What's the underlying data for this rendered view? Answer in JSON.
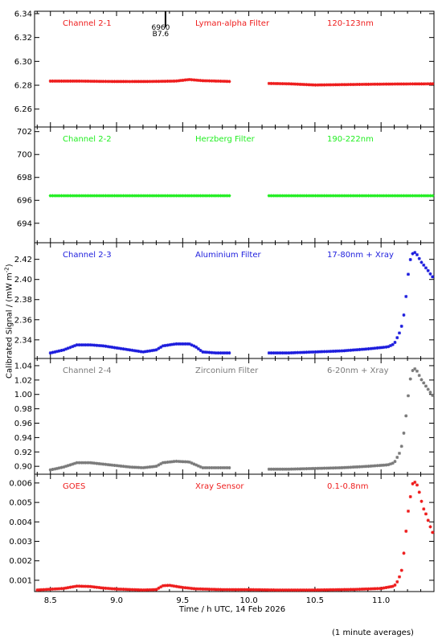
{
  "chart_data": {
    "type": "scatter",
    "xlabel": "Time / h UTC, 14 Feb 2026",
    "ylabel": "Calibrated Signal / (mW m",
    "ylabel_sup": "-2",
    "ylabel_end": ")",
    "note": "(1 minute averages)",
    "xlim": [
      8.38,
      11.4
    ],
    "x_ticks": [
      "8.5",
      "9.0",
      "9.5",
      "10.0",
      "10.5",
      "11.0"
    ],
    "x_tick_values": [
      8.5,
      9.0,
      9.5,
      10.0,
      10.5,
      11.0
    ],
    "event_marker": {
      "x": 9.37,
      "labels": [
        "6960",
        "B7.6"
      ]
    },
    "panels": [
      {
        "channel": "Channel 2-1",
        "filter": "Lyman-alpha Filter",
        "band": "120-123nm",
        "color": "#ee1c1c",
        "ylim": [
          6.245,
          6.342
        ],
        "y_ticks": [
          "6.26",
          "6.28",
          "6.30",
          "6.32",
          "6.34"
        ],
        "y_tick_values": [
          6.26,
          6.28,
          6.3,
          6.32,
          6.34
        ],
        "gap": [
          9.86,
          10.14
        ],
        "points": [
          [
            8.5,
            6.2835
          ],
          [
            8.7,
            6.2835
          ],
          [
            8.9,
            6.2832
          ],
          [
            9.1,
            6.2831
          ],
          [
            9.3,
            6.2832
          ],
          [
            9.45,
            6.2835
          ],
          [
            9.55,
            6.2848
          ],
          [
            9.65,
            6.2838
          ],
          [
            9.85,
            6.2832
          ],
          [
            10.15,
            6.2815
          ],
          [
            10.3,
            6.2812
          ],
          [
            10.5,
            6.2802
          ],
          [
            10.7,
            6.2805
          ],
          [
            10.9,
            6.2808
          ],
          [
            11.1,
            6.281
          ],
          [
            11.4,
            6.2812
          ]
        ]
      },
      {
        "channel": "Channel 2-2",
        "filter": "Herzberg Filter",
        "band": "190-222nm",
        "color": "#22ee22",
        "ylim": [
          692.3,
          702.4
        ],
        "y_ticks": [
          "694",
          "696",
          "698",
          "700",
          "702"
        ],
        "y_tick_values": [
          694,
          696,
          698,
          700,
          702
        ],
        "gap": [
          9.86,
          10.14
        ],
        "points": [
          [
            8.5,
            696.4
          ],
          [
            9.0,
            696.4
          ],
          [
            9.5,
            696.4
          ],
          [
            9.85,
            696.4
          ],
          [
            10.15,
            696.4
          ],
          [
            10.8,
            696.4
          ],
          [
            11.4,
            696.4
          ]
        ]
      },
      {
        "channel": "Channel 2-3",
        "filter": "Aluminium Filter",
        "band": "17-80nm + Xray",
        "color": "#1c1cdd",
        "ylim": [
          2.3215,
          2.4365
        ],
        "y_ticks": [
          "2.34",
          "2.36",
          "2.38",
          "2.40",
          "2.42"
        ],
        "y_tick_values": [
          2.34,
          2.36,
          2.38,
          2.4,
          2.42
        ],
        "gap": [
          9.86,
          10.14
        ],
        "points": [
          [
            8.5,
            2.327
          ],
          [
            8.6,
            2.33
          ],
          [
            8.7,
            2.335
          ],
          [
            8.8,
            2.335
          ],
          [
            8.9,
            2.334
          ],
          [
            9.0,
            2.332
          ],
          [
            9.1,
            2.33
          ],
          [
            9.2,
            2.328
          ],
          [
            9.3,
            2.33
          ],
          [
            9.35,
            2.334
          ],
          [
            9.45,
            2.336
          ],
          [
            9.55,
            2.336
          ],
          [
            9.6,
            2.333
          ],
          [
            9.65,
            2.328
          ],
          [
            9.75,
            2.327
          ],
          [
            9.85,
            2.327
          ],
          [
            10.15,
            2.327
          ],
          [
            10.3,
            2.327
          ],
          [
            10.5,
            2.328
          ],
          [
            10.7,
            2.329
          ],
          [
            10.9,
            2.331
          ],
          [
            11.05,
            2.333
          ],
          [
            11.1,
            2.336
          ],
          [
            11.15,
            2.35
          ],
          [
            11.18,
            2.37
          ],
          [
            11.2,
            2.4
          ],
          [
            11.22,
            2.419
          ],
          [
            11.24,
            2.426
          ],
          [
            11.26,
            2.427
          ],
          [
            11.28,
            2.423
          ],
          [
            11.3,
            2.418
          ],
          [
            11.33,
            2.413
          ],
          [
            11.36,
            2.408
          ],
          [
            11.38,
            2.404
          ],
          [
            11.4,
            2.401
          ]
        ]
      },
      {
        "channel": "Channel 2-4",
        "filter": "Zirconium Filter",
        "band": "6-20nm + Xray",
        "color": "#7a7a7a",
        "ylim": [
          0.889,
          1.05
        ],
        "y_ticks": [
          "0.90",
          "0.92",
          "0.94",
          "0.96",
          "0.98",
          "1.00",
          "1.02",
          "1.04"
        ],
        "y_tick_values": [
          0.9,
          0.92,
          0.94,
          0.96,
          0.98,
          1.0,
          1.02,
          1.04
        ],
        "gap": [
          9.86,
          10.14
        ],
        "points": [
          [
            8.5,
            0.895
          ],
          [
            8.6,
            0.899
          ],
          [
            8.7,
            0.905
          ],
          [
            8.8,
            0.905
          ],
          [
            8.9,
            0.903
          ],
          [
            9.0,
            0.901
          ],
          [
            9.1,
            0.899
          ],
          [
            9.2,
            0.898
          ],
          [
            9.3,
            0.9
          ],
          [
            9.35,
            0.905
          ],
          [
            9.45,
            0.907
          ],
          [
            9.55,
            0.906
          ],
          [
            9.6,
            0.902
          ],
          [
            9.65,
            0.898
          ],
          [
            9.75,
            0.898
          ],
          [
            9.85,
            0.898
          ],
          [
            10.15,
            0.896
          ],
          [
            10.3,
            0.896
          ],
          [
            10.5,
            0.897
          ],
          [
            10.7,
            0.898
          ],
          [
            10.9,
            0.9
          ],
          [
            11.05,
            0.902
          ],
          [
            11.1,
            0.905
          ],
          [
            11.15,
            0.922
          ],
          [
            11.18,
            0.955
          ],
          [
            11.2,
            0.99
          ],
          [
            11.22,
            1.02
          ],
          [
            11.24,
            1.034
          ],
          [
            11.26,
            1.036
          ],
          [
            11.28,
            1.03
          ],
          [
            11.3,
            1.022
          ],
          [
            11.33,
            1.014
          ],
          [
            11.36,
            1.006
          ],
          [
            11.38,
            1.001
          ],
          [
            11.4,
            0.996
          ]
        ]
      },
      {
        "channel": "GOES",
        "filter": "Xray Sensor",
        "band": "0.1-0.8nm",
        "color": "#ee1c1c",
        "ylim": [
          0.00042,
          0.00645
        ],
        "y_ticks": [
          "0.001",
          "0.002",
          "0.003",
          "0.004",
          "0.005",
          "0.006"
        ],
        "y_tick_values": [
          0.001,
          0.002,
          0.003,
          0.004,
          0.005,
          0.006
        ],
        "gap": null,
        "points": [
          [
            8.4,
            0.0005
          ],
          [
            8.6,
            0.00058
          ],
          [
            8.7,
            0.0007
          ],
          [
            8.8,
            0.00068
          ],
          [
            8.9,
            0.0006
          ],
          [
            9.0,
            0.00055
          ],
          [
            9.2,
            0.0005
          ],
          [
            9.3,
            0.00052
          ],
          [
            9.35,
            0.00072
          ],
          [
            9.4,
            0.00074
          ],
          [
            9.5,
            0.00063
          ],
          [
            9.6,
            0.00056
          ],
          [
            9.8,
            0.00052
          ],
          [
            10.0,
            0.00052
          ],
          [
            10.2,
            0.0005
          ],
          [
            10.5,
            0.0005
          ],
          [
            10.8,
            0.00053
          ],
          [
            11.0,
            0.00058
          ],
          [
            11.1,
            0.0007
          ],
          [
            11.13,
            0.001
          ],
          [
            11.16,
            0.0016
          ],
          [
            11.18,
            0.0029
          ],
          [
            11.2,
            0.0043
          ],
          [
            11.22,
            0.0052
          ],
          [
            11.24,
            0.006
          ],
          [
            11.26,
            0.00605
          ],
          [
            11.28,
            0.0058
          ],
          [
            11.3,
            0.0052
          ],
          [
            11.32,
            0.0047
          ],
          [
            11.34,
            0.0044
          ],
          [
            11.36,
            0.004
          ],
          [
            11.38,
            0.0036
          ],
          [
            11.4,
            0.0033
          ]
        ]
      }
    ]
  }
}
